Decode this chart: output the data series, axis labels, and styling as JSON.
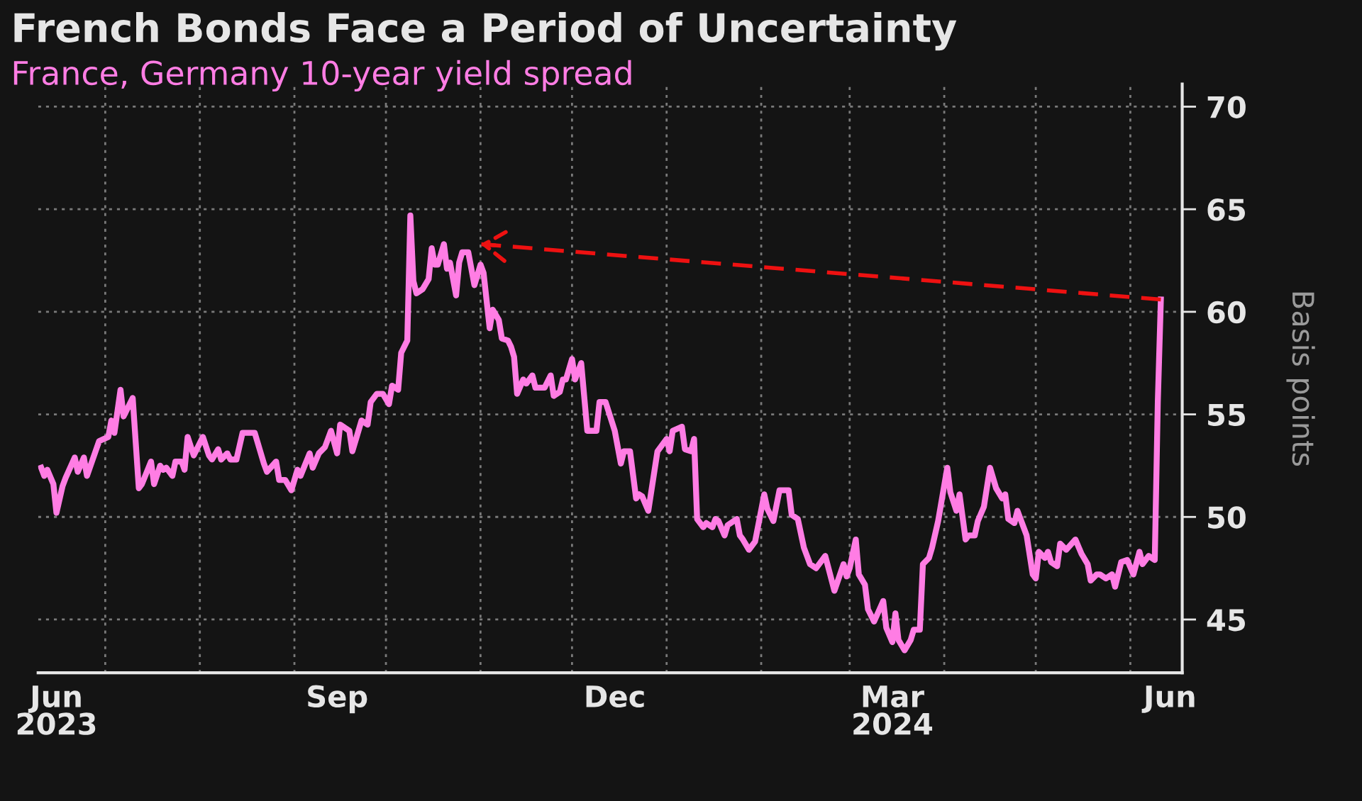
{
  "chart_data": {
    "type": "line",
    "title": "French Bonds Face a Period of Uncertainty",
    "subtitle": "France, Germany 10-year yield spread",
    "ylabel": "Basis points",
    "xlim": [
      "2023-06-09",
      "2024-06-18"
    ],
    "xticks": [
      {
        "value": "2023-06-15",
        "label": "Jun\n2023"
      },
      {
        "value": "2023-07-01",
        "label": null
      },
      {
        "value": "2023-08-01",
        "label": null
      },
      {
        "value": "2023-09-01",
        "label": null
      },
      {
        "value": "2023-09-15",
        "label": "Sep"
      },
      {
        "value": "2023-10-01",
        "label": null
      },
      {
        "value": "2023-11-01",
        "label": null
      },
      {
        "value": "2023-12-01",
        "label": null
      },
      {
        "value": "2023-12-15",
        "label": "Dec"
      },
      {
        "value": "2024-01-01",
        "label": null
      },
      {
        "value": "2024-02-01",
        "label": null
      },
      {
        "value": "2024-03-01",
        "label": null
      },
      {
        "value": "2024-03-15",
        "label": "Mar\n2024"
      },
      {
        "value": "2024-04-01",
        "label": null
      },
      {
        "value": "2024-05-01",
        "label": null
      },
      {
        "value": "2024-06-01",
        "label": null
      },
      {
        "value": "2024-06-14",
        "label": "Jun"
      }
    ],
    "ylim": [
      42.4,
      71.1
    ],
    "yticks": [
      45,
      50,
      55,
      60,
      65,
      70
    ],
    "grid": true,
    "line_style": "solid",
    "series": [
      {
        "color": "#ff7de4",
        "x": [
          "2023-06-10",
          "2023-06-11",
          "2023-06-12",
          "2023-06-14",
          "2023-06-15",
          "2023-06-17",
          "2023-06-18",
          "2023-06-21",
          "2023-06-22",
          "2023-06-24",
          "2023-06-25",
          "2023-06-29",
          "2023-07-02",
          "2023-07-03",
          "2023-07-04",
          "2023-07-06",
          "2023-07-07",
          "2023-07-10",
          "2023-07-12",
          "2023-07-13",
          "2023-07-16",
          "2023-07-17",
          "2023-07-19",
          "2023-07-20",
          "2023-07-21",
          "2023-07-23",
          "2023-07-24",
          "2023-07-26",
          "2023-07-27",
          "2023-07-28",
          "2023-07-30",
          "2023-08-02",
          "2023-08-04",
          "2023-08-05",
          "2023-08-07",
          "2023-08-08",
          "2023-08-10",
          "2023-08-11",
          "2023-08-13",
          "2023-08-15",
          "2023-08-19",
          "2023-08-22",
          "2023-08-23",
          "2023-08-26",
          "2023-08-27",
          "2023-08-29",
          "2023-08-31",
          "2023-09-02",
          "2023-09-03",
          "2023-09-06",
          "2023-09-07",
          "2023-09-09",
          "2023-09-11",
          "2023-09-13",
          "2023-09-15",
          "2023-09-16",
          "2023-09-19",
          "2023-09-20",
          "2023-09-23",
          "2023-09-25",
          "2023-09-26",
          "2023-09-28",
          "2023-09-30",
          "2023-10-02",
          "2023-10-03",
          "2023-10-05",
          "2023-10-06",
          "2023-10-08",
          "2023-10-09",
          "2023-10-10",
          "2023-10-11",
          "2023-10-13",
          "2023-10-15",
          "2023-10-16",
          "2023-10-17",
          "2023-10-18",
          "2023-10-20",
          "2023-10-21",
          "2023-10-22",
          "2023-10-24",
          "2023-10-25",
          "2023-10-26",
          "2023-10-28",
          "2023-10-30",
          "2023-11-01",
          "2023-11-02",
          "2023-11-04",
          "2023-11-05",
          "2023-11-07",
          "2023-11-08",
          "2023-11-10",
          "2023-11-11",
          "2023-11-12",
          "2023-11-13",
          "2023-11-15",
          "2023-11-16",
          "2023-11-18",
          "2023-11-19",
          "2023-11-22",
          "2023-11-24",
          "2023-11-25",
          "2023-11-27",
          "2023-11-28",
          "2023-11-29",
          "2023-12-01",
          "2023-12-02",
          "2023-12-04",
          "2023-12-06",
          "2023-12-09",
          "2023-12-10",
          "2023-12-12",
          "2023-12-15",
          "2023-12-17",
          "2023-12-18",
          "2023-12-20",
          "2023-12-22",
          "2023-12-23",
          "2023-12-24",
          "2023-12-26",
          "2023-12-29",
          "2024-01-01",
          "2024-01-02",
          "2024-01-03",
          "2024-01-06",
          "2024-01-07",
          "2024-01-09",
          "2024-01-10",
          "2024-01-11",
          "2024-01-13",
          "2024-01-14",
          "2024-01-16",
          "2024-01-17",
          "2024-01-18",
          "2024-01-20",
          "2024-01-21",
          "2024-01-24",
          "2024-01-25",
          "2024-01-26",
          "2024-01-28",
          "2024-01-30",
          "2024-02-02",
          "2024-02-03",
          "2024-02-05",
          "2024-02-07",
          "2024-02-10",
          "2024-02-11",
          "2024-02-13",
          "2024-02-15",
          "2024-02-17",
          "2024-02-19",
          "2024-02-22",
          "2024-02-25",
          "2024-02-28",
          "2024-02-29",
          "2024-03-01",
          "2024-03-03",
          "2024-03-04",
          "2024-03-06",
          "2024-03-07",
          "2024-03-09",
          "2024-03-12",
          "2024-03-13",
          "2024-03-15",
          "2024-03-16",
          "2024-03-17",
          "2024-03-19",
          "2024-03-21",
          "2024-03-22",
          "2024-03-24",
          "2024-03-25",
          "2024-03-27",
          "2024-03-28",
          "2024-03-30",
          "2024-04-02",
          "2024-04-03",
          "2024-04-05",
          "2024-04-06",
          "2024-04-08",
          "2024-04-09",
          "2024-04-11",
          "2024-04-12",
          "2024-04-14",
          "2024-04-16",
          "2024-04-18",
          "2024-04-20",
          "2024-04-21",
          "2024-04-22",
          "2024-04-24",
          "2024-04-25",
          "2024-04-27",
          "2024-04-28",
          "2024-04-30",
          "2024-05-01",
          "2024-05-02",
          "2024-05-04",
          "2024-05-05",
          "2024-05-06",
          "2024-05-08",
          "2024-05-09",
          "2024-05-11",
          "2024-05-14",
          "2024-05-16",
          "2024-05-18",
          "2024-05-19",
          "2024-05-21",
          "2024-05-22",
          "2024-05-24",
          "2024-05-26",
          "2024-05-27",
          "2024-05-29",
          "2024-05-31",
          "2024-06-02",
          "2024-06-04",
          "2024-06-05",
          "2024-06-07",
          "2024-06-09",
          "2024-06-10",
          "2024-06-11"
        ],
        "values": [
          52.4,
          52.0,
          52.3,
          51.6,
          50.2,
          51.5,
          51.9,
          52.9,
          52.2,
          52.9,
          52.0,
          53.7,
          53.9,
          54.7,
          54.1,
          56.2,
          54.9,
          55.8,
          51.4,
          51.6,
          52.7,
          51.6,
          52.5,
          52.3,
          52.4,
          52.0,
          52.7,
          52.7,
          52.3,
          53.9,
          53.0,
          53.9,
          53.0,
          52.8,
          53.3,
          52.8,
          53.1,
          52.8,
          52.8,
          54.1,
          54.1,
          52.6,
          52.2,
          52.7,
          51.8,
          51.8,
          51.3,
          52.3,
          52.0,
          53.1,
          52.4,
          53.1,
          53.4,
          54.2,
          53.1,
          54.5,
          54.2,
          53.2,
          54.7,
          54.5,
          55.6,
          56.0,
          56.0,
          55.5,
          56.4,
          56.2,
          58.0,
          58.6,
          64.7,
          61.5,
          60.9,
          61.1,
          61.6,
          63.1,
          62.3,
          62.3,
          63.3,
          62.1,
          62.4,
          60.8,
          62.4,
          62.9,
          62.9,
          61.3,
          62.3,
          61.9,
          59.2,
          60.1,
          59.6,
          58.7,
          58.6,
          58.3,
          57.8,
          56.0,
          56.7,
          56.5,
          56.9,
          56.3,
          56.3,
          56.9,
          55.9,
          56.1,
          56.7,
          56.7,
          57.7,
          56.7,
          57.5,
          54.2,
          54.2,
          55.6,
          55.6,
          54.2,
          52.6,
          53.2,
          53.2,
          50.9,
          51.1,
          51.0,
          50.3,
          53.2,
          53.8,
          53.2,
          54.2,
          54.4,
          53.3,
          53.2,
          53.8,
          49.9,
          49.5,
          49.7,
          49.5,
          49.9,
          49.8,
          49.1,
          49.6,
          49.9,
          49.1,
          48.9,
          48.4,
          48.8,
          51.1,
          50.4,
          49.8,
          51.3,
          51.3,
          50.1,
          49.9,
          48.5,
          47.7,
          47.5,
          48.1,
          46.4,
          47.7,
          47.1,
          47.5,
          48.9,
          47.2,
          46.7,
          45.5,
          44.9,
          45.9,
          44.6,
          43.9,
          45.3,
          44.0,
          43.5,
          44.0,
          44.5,
          44.5,
          47.7,
          48.0,
          48.5,
          49.8,
          52.4,
          51.2,
          50.3,
          51.1,
          48.9,
          49.1,
          49.1,
          49.8,
          50.5,
          52.4,
          51.4,
          50.9,
          51.1,
          49.9,
          49.7,
          50.3,
          49.5,
          49.1,
          47.2,
          47.0,
          48.3,
          48.0,
          48.3,
          47.8,
          47.6,
          48.7,
          48.4,
          48.9,
          48.2,
          47.7,
          46.9,
          47.2,
          47.2,
          47.0,
          47.2,
          46.6,
          47.8,
          47.9,
          47.2,
          48.3,
          47.7,
          48.1,
          47.9,
          55.6,
          60.6
        ]
      },
      {
        "type": "line",
        "color": "#ee1111",
        "line_style": "dashed",
        "x": [
          "2024-06-11",
          "2023-11-01"
        ],
        "values": [
          60.6,
          63.3
        ]
      }
    ]
  }
}
